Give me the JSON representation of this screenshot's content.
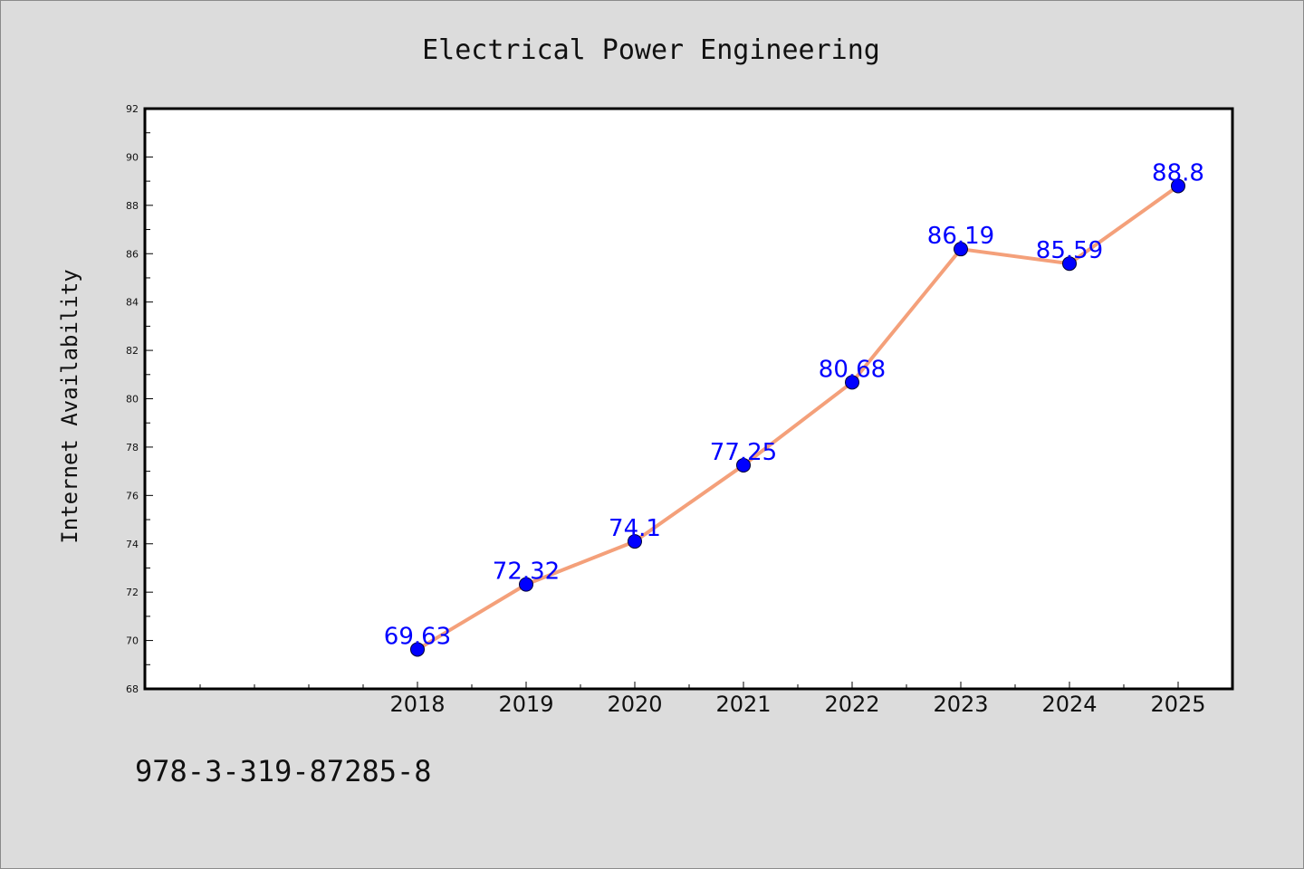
{
  "chart_data": {
    "type": "line",
    "title": "Electrical Power Engineering",
    "xlabel": "",
    "ylabel": "Internet Availability",
    "categories": [
      "2018",
      "2019",
      "2020",
      "2021",
      "2022",
      "2023",
      "2024",
      "2025"
    ],
    "series": [
      {
        "values": [
          69.63,
          72.32,
          74.1,
          77.25,
          80.68,
          86.19,
          85.59,
          88.8
        ],
        "data_labels": [
          "69.63",
          "72.32",
          "74.1",
          "77.25",
          "80.68",
          "86.19",
          "85.59",
          "88.8"
        ]
      }
    ],
    "ylim": [
      68,
      92
    ],
    "yticks": [
      "68",
      "70",
      "72",
      "74",
      "76",
      "78",
      "80",
      "82",
      "84",
      "86",
      "88",
      "90",
      "92"
    ],
    "grid": false,
    "legend": "none",
    "colors": {
      "background": "#dcdcdc",
      "plot_background": "#ffffff",
      "line": "#f4a07a",
      "marker": "#0000ff",
      "data_label": "#0000ff"
    }
  },
  "footer": {
    "isbn": "978-3-319-87285-8"
  }
}
